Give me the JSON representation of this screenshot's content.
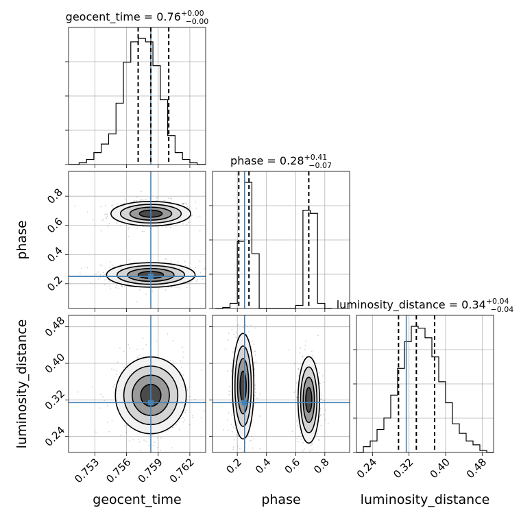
{
  "chart_data": {
    "type": "corner",
    "parameters": [
      {
        "name": "geocent_time",
        "label": "geocent_time",
        "range": [
          0.7505,
          0.7635
        ],
        "ticks": [
          0.753,
          0.756,
          0.759,
          0.762
        ],
        "tick_labels": [
          "0.753",
          "0.756",
          "0.759",
          "0.762"
        ],
        "truth": 0.7583,
        "title": {
          "prefix": "geocent_time = 0.76",
          "sup": "+0.00",
          "sub": "−0.00"
        },
        "quantiles": [
          0.7571,
          0.7583,
          0.76
        ]
      },
      {
        "name": "phase",
        "label": "phase",
        "range": [
          0.03,
          0.97
        ],
        "ticks": [
          0.2,
          0.4,
          0.6,
          0.8
        ],
        "tick_labels": [
          "0.2",
          "0.4",
          "0.6",
          "0.8"
        ],
        "truth": 0.25,
        "title": {
          "prefix": "phase = 0.28",
          "sup": "+0.41",
          "sub": "−0.07"
        },
        "quantiles": [
          0.21,
          0.28,
          0.69
        ]
      },
      {
        "name": "luminosity_distance",
        "label": "luminosity_distance",
        "range": [
          0.205,
          0.505
        ],
        "ticks": [
          0.24,
          0.32,
          0.4,
          0.48
        ],
        "tick_labels": [
          "0.24",
          "0.32",
          "0.40",
          "0.48"
        ],
        "truth": 0.314,
        "title": {
          "prefix": "luminosity_distance = 0.34",
          "sup": "+0.04",
          "sub": "−0.04"
        },
        "quantiles": [
          0.297,
          0.336,
          0.376
        ]
      }
    ],
    "histograms": [
      {
        "parameter": "geocent_time",
        "bin_edges": [
          0.7505,
          0.7515,
          0.7522,
          0.7529,
          0.7536,
          0.7543,
          0.755,
          0.7557,
          0.7564,
          0.7571,
          0.7578,
          0.7585,
          0.7592,
          0.7599,
          0.7606,
          0.7613,
          0.762,
          0.7627,
          0.7635
        ],
        "counts": [
          0,
          1,
          3,
          7,
          12,
          18,
          36,
          60,
          72,
          74,
          72,
          58,
          38,
          17,
          7,
          3,
          1,
          0
        ]
      },
      {
        "parameter": "phase",
        "bin_edges": [
          0.05,
          0.1,
          0.15,
          0.2,
          0.25,
          0.3,
          0.35,
          0.4,
          0.45,
          0.5,
          0.55,
          0.6,
          0.65,
          0.7,
          0.75,
          0.8,
          0.85
        ],
        "counts": [
          0,
          1,
          5,
          65,
          122,
          53,
          0,
          0,
          0,
          0,
          0,
          3,
          95,
          92,
          5,
          0
        ]
      },
      {
        "parameter": "luminosity_distance",
        "bin_edges": [
          0.205,
          0.22,
          0.235,
          0.25,
          0.265,
          0.28,
          0.295,
          0.31,
          0.325,
          0.34,
          0.355,
          0.37,
          0.385,
          0.4,
          0.415,
          0.43,
          0.445,
          0.46,
          0.475,
          0.49,
          0.505
        ],
        "counts": [
          0,
          3,
          6,
          12,
          18,
          30,
          44,
          58,
          66,
          65,
          60,
          50,
          37,
          26,
          15,
          10,
          6,
          4,
          1,
          0
        ]
      }
    ],
    "density_2d": [
      {
        "x": "geocent_time",
        "y": "phase",
        "modes": [
          {
            "x": 0.7583,
            "y": 0.68,
            "sx": 0.0018,
            "sy": 0.04
          },
          {
            "x": 0.7583,
            "y": 0.26,
            "sx": 0.002,
            "sy": 0.04
          }
        ]
      },
      {
        "x": "geocent_time",
        "y": "luminosity_distance",
        "modes": [
          {
            "x": 0.7583,
            "y": 0.33,
            "sx": 0.0016,
            "sy": 0.04
          }
        ]
      },
      {
        "x": "phase",
        "y": "luminosity_distance",
        "modes": [
          {
            "x": 0.24,
            "y": 0.35,
            "sx": 0.035,
            "sy": 0.055
          },
          {
            "x": 0.69,
            "y": 0.32,
            "sx": 0.035,
            "sy": 0.045
          }
        ]
      }
    ],
    "grid": true
  }
}
